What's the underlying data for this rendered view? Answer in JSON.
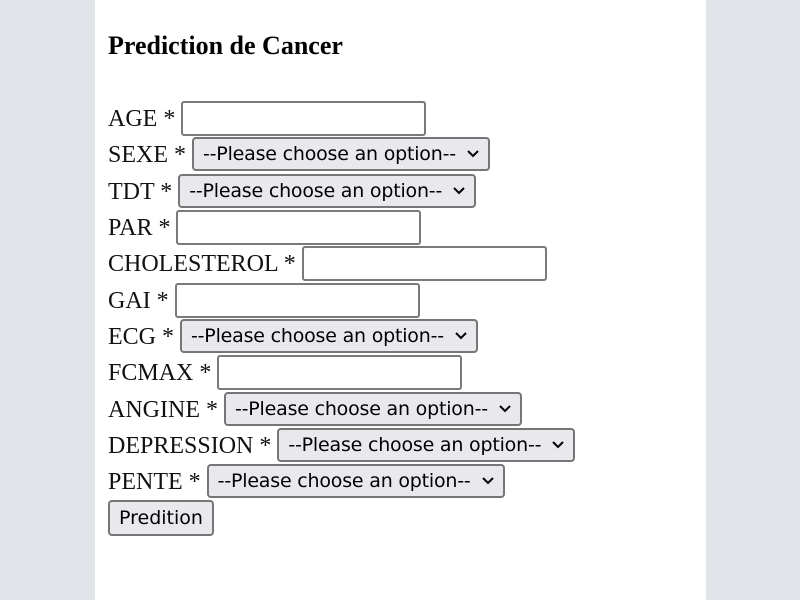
{
  "page": {
    "title": "Prediction de Cancer"
  },
  "form": {
    "fields": [
      {
        "label": "AGE *",
        "type": "text",
        "value": ""
      },
      {
        "label": "SEXE *",
        "type": "select",
        "selected": "--Please choose an option--"
      },
      {
        "label": "TDT *",
        "type": "select",
        "selected": "--Please choose an option--"
      },
      {
        "label": "PAR *",
        "type": "text",
        "value": ""
      },
      {
        "label": "CHOLESTEROL *",
        "type": "text",
        "value": ""
      },
      {
        "label": "GAI *",
        "type": "text",
        "value": ""
      },
      {
        "label": "ECG *",
        "type": "select",
        "selected": "--Please choose an option--"
      },
      {
        "label": "FCMAX *",
        "type": "text",
        "value": ""
      },
      {
        "label": "ANGINE *",
        "type": "select",
        "selected": "--Please choose an option--"
      },
      {
        "label": "DEPRESSION *",
        "type": "select",
        "selected": "--Please choose an option--"
      },
      {
        "label": "PENTE *",
        "type": "select",
        "selected": "--Please choose an option--"
      }
    ],
    "submit_label": "Predition"
  }
}
